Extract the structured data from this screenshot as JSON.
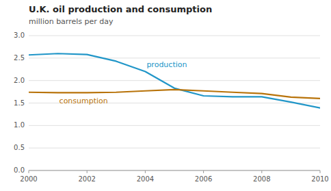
{
  "chart_data": {
    "type": "line",
    "title": "U.K. oil production and consumption",
    "subtitle": "million barrels per day",
    "x": [
      2000,
      2001,
      2002,
      2003,
      2004,
      2005,
      2006,
      2007,
      2008,
      2009,
      2010
    ],
    "series": [
      {
        "name": "production",
        "color": "#2196c8",
        "values": [
          2.57,
          2.6,
          2.58,
          2.43,
          2.2,
          1.83,
          1.66,
          1.64,
          1.64,
          1.52,
          1.39
        ]
      },
      {
        "name": "consumption",
        "color": "#b8730a",
        "values": [
          1.74,
          1.73,
          1.73,
          1.74,
          1.77,
          1.8,
          1.77,
          1.74,
          1.71,
          1.63,
          1.6
        ]
      }
    ],
    "xlim": [
      2000,
      2010
    ],
    "ylim": [
      0.0,
      3.0
    ],
    "xticks": [
      2000,
      2002,
      2004,
      2006,
      2008,
      2010
    ],
    "yticks": [
      {
        "value": 0,
        "label": "0.0"
      },
      0.5,
      {
        "value": 1,
        "label": "1.0"
      },
      1.5,
      {
        "value": 2,
        "label": "2.0"
      },
      2.5,
      {
        "value": 3,
        "label": "3.0"
      }
    ],
    "grid": true
  }
}
